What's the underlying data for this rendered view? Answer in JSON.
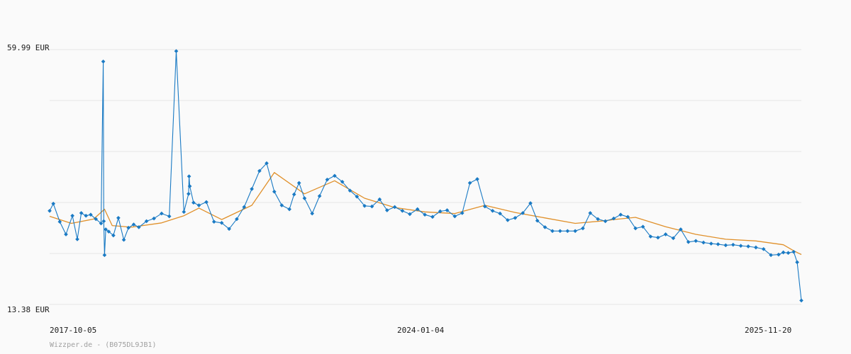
{
  "chart_data": {
    "type": "line",
    "title": "",
    "xlabel": "",
    "ylabel": "",
    "ylim": [
      13.38,
      59.99
    ],
    "y_unit": "EUR",
    "y_tick_labels": [
      "59.99 EUR",
      "13.38 EUR"
    ],
    "x_range": [
      "2017-10-05",
      "2026-02-01"
    ],
    "x_tick_labels": [
      "2017-10-05",
      "2024-01-04",
      "2025-11-20"
    ],
    "grid": true,
    "credit": "Wizzper.de - (B075DL9JB1)",
    "colors": {
      "price": "#1a7ac4",
      "average": "#e0902a",
      "grid": "#e6e6e6",
      "background": "#fafafa"
    },
    "series": [
      {
        "name": "price",
        "style": "line-with-markers",
        "x": [
          "2017-10-05",
          "2017-10-20",
          "2017-11-15",
          "2017-12-10",
          "2018-01-05",
          "2018-01-25",
          "2018-02-10",
          "2018-03-01",
          "2018-03-20",
          "2018-04-10",
          "2018-05-01",
          "2018-05-10",
          "2018-05-12",
          "2018-05-15",
          "2018-05-20",
          "2018-06-01",
          "2018-06-20",
          "2018-07-10",
          "2018-08-01",
          "2018-08-20",
          "2018-09-10",
          "2018-10-01",
          "2018-11-01",
          "2018-12-01",
          "2019-01-01",
          "2019-02-01",
          "2019-03-01",
          "2019-04-01",
          "2019-04-20",
          "2019-04-22",
          "2019-04-25",
          "2019-05-10",
          "2019-06-01",
          "2019-07-01",
          "2019-08-01",
          "2019-09-01",
          "2019-10-01",
          "2019-11-01",
          "2019-12-01",
          "2020-01-01",
          "2020-02-01",
          "2020-03-01",
          "2020-04-01",
          "2020-05-01",
          "2020-06-01",
          "2020-06-20",
          "2020-07-10",
          "2020-08-01",
          "2020-09-01",
          "2020-10-01",
          "2020-11-01",
          "2020-12-01",
          "2021-01-01",
          "2021-02-01",
          "2021-03-01",
          "2021-04-01",
          "2021-05-01",
          "2021-06-01",
          "2021-07-01",
          "2021-08-01",
          "2021-09-01",
          "2021-10-01",
          "2021-11-01",
          "2021-12-01",
          "2022-01-01",
          "2022-02-01",
          "2022-03-01",
          "2022-04-01",
          "2022-05-01",
          "2022-06-01",
          "2022-07-01",
          "2022-08-01",
          "2022-09-01",
          "2022-10-01",
          "2022-11-01",
          "2022-12-01",
          "2023-01-01",
          "2023-02-01",
          "2023-03-01",
          "2023-04-01",
          "2023-05-01",
          "2023-06-01",
          "2023-07-01",
          "2023-08-01",
          "2023-09-01",
          "2023-10-01",
          "2023-11-01",
          "2023-12-01",
          "2024-01-04",
          "2024-02-01",
          "2024-03-01",
          "2024-04-01",
          "2024-05-01",
          "2024-06-01",
          "2024-07-01",
          "2024-08-01",
          "2024-09-01",
          "2024-10-01",
          "2024-11-01",
          "2024-12-01",
          "2025-01-01",
          "2025-02-01",
          "2025-03-01",
          "2025-04-01",
          "2025-05-01",
          "2025-06-01",
          "2025-07-01",
          "2025-08-01",
          "2025-09-01",
          "2025-10-01",
          "2025-11-01",
          "2025-11-20",
          "2025-12-10",
          "2026-01-01",
          "2026-01-15",
          "2026-02-01"
        ],
        "values": [
          30.5,
          31.8,
          28.5,
          26.2,
          29.6,
          25.3,
          30.1,
          29.6,
          29.8,
          29.0,
          28.2,
          57.8,
          28.6,
          22.4,
          27.1,
          26.7,
          26.0,
          29.2,
          25.2,
          27.4,
          28.0,
          27.5,
          28.6,
          29.1,
          30.0,
          29.5,
          59.7,
          30.3,
          33.6,
          36.8,
          35.0,
          32.0,
          31.5,
          32.1,
          28.5,
          28.3,
          27.2,
          29.0,
          31.2,
          34.5,
          37.8,
          39.2,
          34.0,
          31.5,
          30.8,
          33.5,
          35.6,
          32.8,
          30.0,
          33.2,
          36.2,
          36.9,
          35.8,
          34.2,
          33.1,
          31.4,
          31.3,
          32.6,
          30.6,
          31.2,
          30.5,
          29.9,
          30.8,
          29.8,
          29.4,
          30.4,
          30.6,
          29.5,
          30.1,
          35.6,
          36.3,
          31.3,
          30.5,
          30.0,
          28.8,
          29.2,
          30.1,
          31.9,
          28.7,
          27.5,
          26.8,
          26.8,
          26.8,
          26.8,
          27.3,
          30.1,
          29.0,
          28.6,
          29.1,
          29.8,
          29.4,
          27.3,
          27.6,
          25.8,
          25.6,
          26.2,
          25.5,
          27.1,
          24.8,
          25.0,
          24.7,
          24.5,
          24.4,
          24.2,
          24.3,
          24.1,
          24.0,
          23.8,
          23.5,
          22.4,
          22.5,
          22.9,
          22.8,
          23.0,
          21.1,
          14.1
        ]
      },
      {
        "name": "average",
        "style": "line",
        "x": [
          "2017-10-05",
          "2018-01-01",
          "2018-04-01",
          "2018-05-15",
          "2018-06-15",
          "2018-09-01",
          "2019-01-01",
          "2019-04-01",
          "2019-06-01",
          "2019-09-01",
          "2020-01-01",
          "2020-04-01",
          "2020-08-01",
          "2020-12-01",
          "2021-04-01",
          "2021-08-01",
          "2021-12-01",
          "2022-04-01",
          "2022-08-01",
          "2022-12-01",
          "2023-04-01",
          "2023-08-01",
          "2023-12-01",
          "2024-01-04",
          "2024-04-01",
          "2024-08-01",
          "2024-12-01",
          "2025-04-01",
          "2025-08-01",
          "2025-11-20",
          "2026-01-01",
          "2026-02-01"
        ],
        "values": [
          29.5,
          28.2,
          29.0,
          30.8,
          27.8,
          27.5,
          28.3,
          29.6,
          31.0,
          28.9,
          31.5,
          37.5,
          33.6,
          36.0,
          32.8,
          31.1,
          30.3,
          30.0,
          31.5,
          30.2,
          29.2,
          28.2,
          28.7,
          28.9,
          29.3,
          27.6,
          26.2,
          25.3,
          25.0,
          24.3,
          23.2,
          22.5
        ]
      }
    ]
  }
}
